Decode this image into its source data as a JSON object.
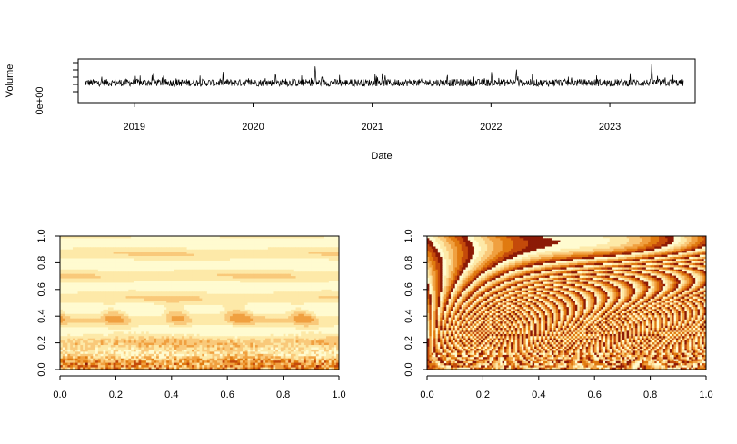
{
  "chart_data": [
    {
      "type": "line",
      "title": "",
      "xlabel": "Date",
      "ylabel": "Volume",
      "x_tick_labels": [
        "2019",
        "2020",
        "2021",
        "2022",
        "2023"
      ],
      "y_tick_labels": [
        "0e+00"
      ],
      "x_range": [
        "2018-08-01",
        "2023-08-15"
      ],
      "series": [
        {
          "color": "#000000",
          "description_values_relative": "daily trading volume, noisy; spikes near 2019-03, 2020-03, 2020-07, 2021-02, 2022-03, 2023-05 (largest)",
          "key_points": [
            {
              "x": "2018-08-01",
              "y": 0.28
            },
            {
              "x": "2019-03-01",
              "y": 0.65
            },
            {
              "x": "2019-07-15",
              "y": 0.12
            },
            {
              "x": "2020-03-10",
              "y": 0.7
            },
            {
              "x": "2020-07-10",
              "y": 0.92
            },
            {
              "x": "2021-02-10",
              "y": 0.6
            },
            {
              "x": "2022-03-20",
              "y": 0.8
            },
            {
              "x": "2022-09-01",
              "y": 0.2
            },
            {
              "x": "2023-05-10",
              "y": 0.95
            },
            {
              "x": "2023-08-15",
              "y": 0.3
            }
          ]
        }
      ],
      "grid": false
    },
    {
      "type": "heatmap",
      "title": "",
      "xlim": [
        0,
        1
      ],
      "ylim": [
        0,
        1
      ],
      "x_tick_labels": [
        "0.0",
        "0.2",
        "0.4",
        "0.6",
        "0.8",
        "1.0"
      ],
      "y_tick_labels": [
        "0.0",
        "0.2",
        "0.4",
        "0.6",
        "0.8",
        "1.0"
      ],
      "palette": [
        "#fffbd0",
        "#fde9a8",
        "#f9c97a",
        "#f0a040",
        "#e07a10",
        "#c44a0a",
        "#8c1a06"
      ],
      "description": "wavelet power spectrum"
    },
    {
      "type": "heatmap",
      "title": "",
      "xlim": [
        0,
        1
      ],
      "ylim": [
        0,
        1
      ],
      "x_tick_labels": [
        "0.0",
        "0.2",
        "0.4",
        "0.6",
        "0.8",
        "1.0"
      ],
      "y_tick_labels": [
        "0.0",
        "0.2",
        "0.4",
        "0.6",
        "0.8",
        "1.0"
      ],
      "palette": [
        "#fffbd0",
        "#fde9a8",
        "#f9c97a",
        "#f0a040",
        "#e07a10",
        "#c44a0a",
        "#8c1a06"
      ],
      "description": "wavelet phase"
    }
  ]
}
